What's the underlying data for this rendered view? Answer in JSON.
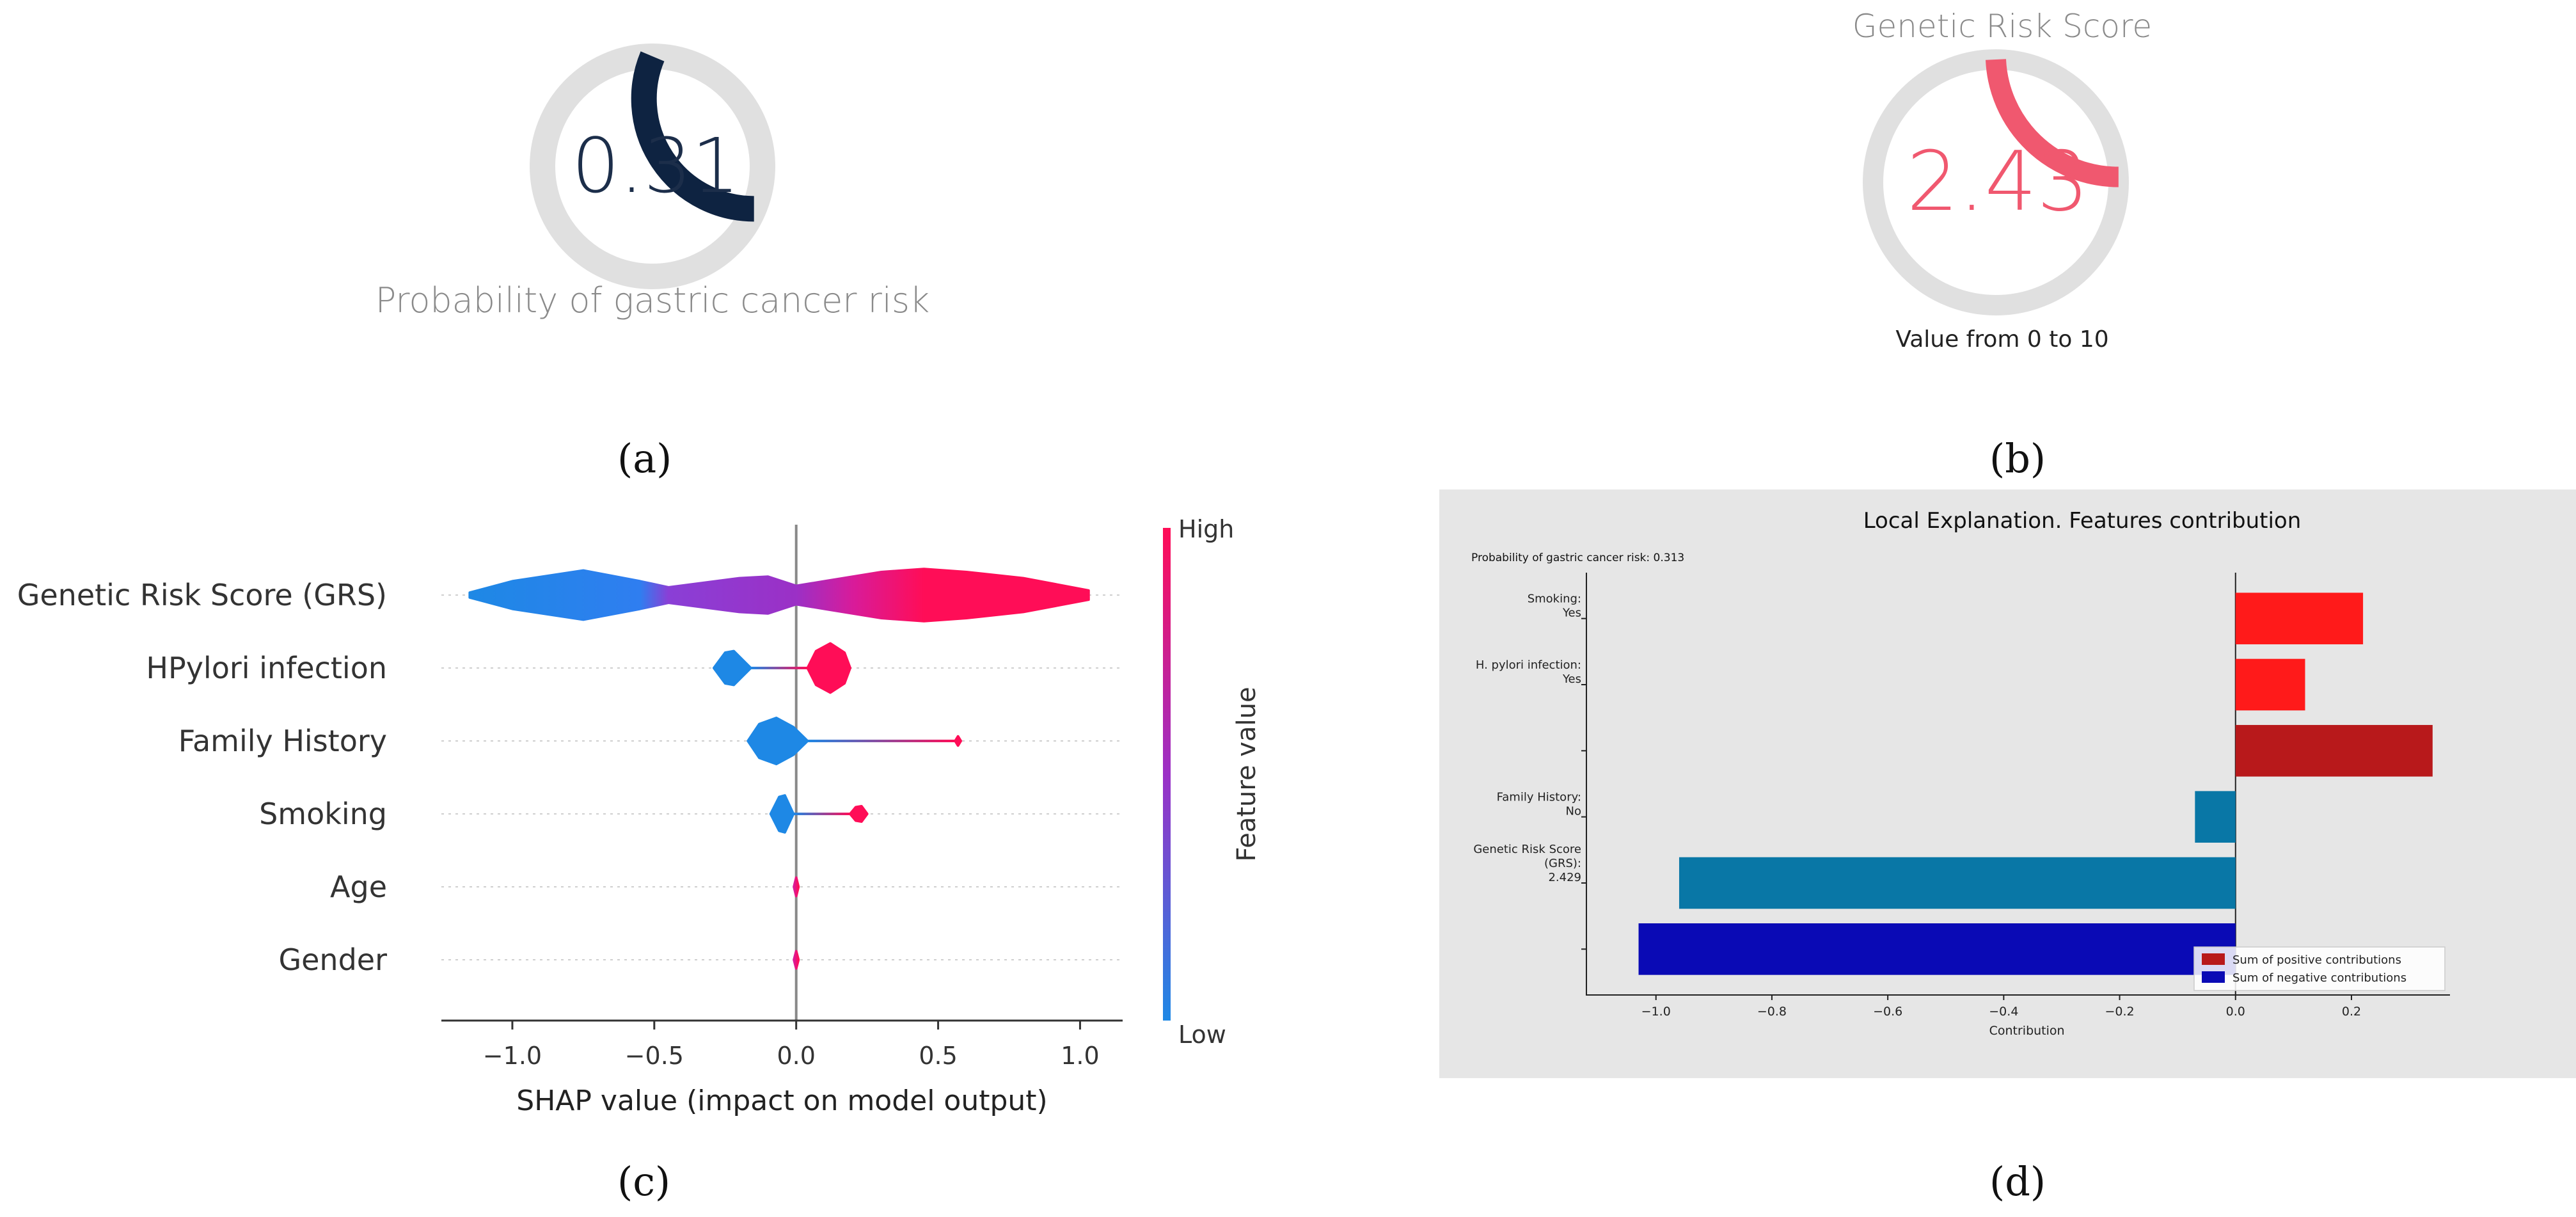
{
  "figure": {
    "panel_labels": [
      "(a)",
      "(b)",
      "(c)",
      "(d)"
    ]
  },
  "gauge_a": {
    "value_text": "0.31",
    "value": 0.313,
    "max": 1,
    "caption": "Probability of gastric cancer risk",
    "fill_color": "#0e2341",
    "track_color": "#e0e0e0"
  },
  "gauge_b": {
    "title": "Genetic Risk Score",
    "value_text": "2.43",
    "value": 2.43,
    "max": 10,
    "caption": "Value from 0 to 10",
    "fill_color": "#f0586f",
    "track_color": "#e0e0e0"
  },
  "chart_data": [
    {
      "id": "shap_summary",
      "type": "violin",
      "xlabel": "SHAP value (impact on model output)",
      "xlim": [
        -1.25,
        1.15
      ],
      "xticks": [
        -1.0,
        -0.5,
        0.0,
        0.5,
        1.0
      ],
      "xtick_labels": [
        "−1.0",
        "−0.5",
        "0.0",
        "0.5",
        "1.0"
      ],
      "features": [
        {
          "name": "Genetic Risk Score (GRS)",
          "shap_min": -1.15,
          "shap_max": 1.03,
          "density": [
            [
              -1.15,
              0.08
            ],
            [
              -1.0,
              0.45
            ],
            [
              -0.75,
              0.8
            ],
            [
              -0.55,
              0.45
            ],
            [
              -0.45,
              0.25
            ],
            [
              -0.2,
              0.55
            ],
            [
              -0.1,
              0.6
            ],
            [
              0.0,
              0.3
            ],
            [
              0.1,
              0.45
            ],
            [
              0.3,
              0.75
            ],
            [
              0.45,
              0.85
            ],
            [
              0.6,
              0.75
            ],
            [
              0.8,
              0.55
            ],
            [
              1.03,
              0.15
            ]
          ],
          "color_stops": [
            [
              -1.15,
              "#1e88e5"
            ],
            [
              -0.55,
              "#2f7ef0"
            ],
            [
              -0.45,
              "#8a3fd6"
            ],
            [
              0.0,
              "#9b30c6"
            ],
            [
              0.2,
              "#d81b9a"
            ],
            [
              0.45,
              "#ff0d57"
            ],
            [
              1.03,
              "#ff0d57"
            ]
          ]
        },
        {
          "name": "HPylori infection",
          "shap_min": -0.29,
          "shap_max": 0.19,
          "density": [
            [
              -0.29,
              0
            ],
            [
              -0.25,
              0.5
            ],
            [
              -0.22,
              0.55
            ],
            [
              -0.16,
              0
            ],
            [
              0.04,
              0
            ],
            [
              0.07,
              0.55
            ],
            [
              0.12,
              0.8
            ],
            [
              0.17,
              0.5
            ],
            [
              0.19,
              0
            ]
          ],
          "color_stops": [
            [
              -0.29,
              "#1e88e5"
            ],
            [
              -0.16,
              "#1e88e5"
            ],
            [
              0.04,
              "#ff0d57"
            ],
            [
              0.19,
              "#ff0d57"
            ]
          ]
        },
        {
          "name": "Family History",
          "shap_min": -0.17,
          "shap_max": 0.58,
          "density": [
            [
              -0.17,
              0
            ],
            [
              -0.13,
              0.55
            ],
            [
              -0.07,
              0.75
            ],
            [
              -0.01,
              0.45
            ],
            [
              0.04,
              0
            ],
            [
              0.56,
              0
            ],
            [
              0.57,
              0.15
            ],
            [
              0.58,
              0
            ]
          ],
          "color_stops": [
            [
              -0.17,
              "#1e88e5"
            ],
            [
              0.04,
              "#1e88e5"
            ],
            [
              0.56,
              "#ff0d57"
            ],
            [
              0.58,
              "#ff0d57"
            ]
          ]
        },
        {
          "name": "Smoking",
          "shap_min": -0.09,
          "shap_max": 0.25,
          "density": [
            [
              -0.09,
              0
            ],
            [
              -0.06,
              0.55
            ],
            [
              -0.04,
              0.6
            ],
            [
              -0.01,
              0
            ],
            [
              0.19,
              0
            ],
            [
              0.21,
              0.22
            ],
            [
              0.23,
              0.25
            ],
            [
              0.25,
              0
            ]
          ],
          "color_stops": [
            [
              -0.09,
              "#1e88e5"
            ],
            [
              -0.01,
              "#1e88e5"
            ],
            [
              0.19,
              "#ff0d57"
            ],
            [
              0.25,
              "#ff0d57"
            ]
          ]
        },
        {
          "name": "Age",
          "shap_min": -0.005,
          "shap_max": 0.005,
          "density": [
            [
              -0.008,
              0
            ],
            [
              0,
              0.3
            ],
            [
              0.008,
              0
            ]
          ],
          "color_stops": [
            [
              -0.008,
              "#d81b9a"
            ],
            [
              0.008,
              "#ff0d57"
            ]
          ]
        },
        {
          "name": "Gender",
          "shap_min": -0.005,
          "shap_max": 0.005,
          "density": [
            [
              -0.008,
              0
            ],
            [
              0,
              0.28
            ],
            [
              0.008,
              0
            ]
          ],
          "color_stops": [
            [
              -0.008,
              "#d81b9a"
            ],
            [
              0.008,
              "#ff0d57"
            ]
          ]
        }
      ],
      "colorbar": {
        "label": "Feature value",
        "high": "High",
        "low": "Low",
        "low_color": "#1e88e5",
        "high_color": "#ff0d57"
      }
    },
    {
      "id": "local_explanation",
      "type": "barh",
      "title": "Local Explanation. Features contribution",
      "annotation": "Probability of gastric cancer risk: 0.313",
      "xlabel": "Contribution",
      "xlim": [
        -1.12,
        0.37
      ],
      "xticks": [
        -1.0,
        -0.8,
        -0.6,
        -0.4,
        -0.2,
        0.0,
        0.2
      ],
      "xtick_labels": [
        "−1.0",
        "−0.8",
        "−0.6",
        "−0.4",
        "−0.2",
        "0.0",
        "0.2"
      ],
      "bars": [
        {
          "label": [
            "Smoking:",
            "Yes"
          ],
          "value": 0.22,
          "color": "#ff1a1a"
        },
        {
          "label": [
            "H. pylori infection:",
            "Yes"
          ],
          "value": 0.12,
          "color": "#ff1a1a"
        },
        {
          "label": [],
          "value": 0.34,
          "color": "#b8191b"
        },
        {
          "label": [
            "Family History:",
            "No"
          ],
          "value": -0.07,
          "color": "#0977a6"
        },
        {
          "label": [
            "Genetic Risk Score",
            "(GRS):",
            "2.429"
          ],
          "value": -0.96,
          "color": "#0977a6"
        },
        {
          "label": [],
          "value": -1.03,
          "color": "#0a0ab5"
        }
      ],
      "legend": [
        {
          "label": "Sum of positive contributions",
          "color": "#b8191b"
        },
        {
          "label": "Sum of negative contributions",
          "color": "#0a0ab5"
        }
      ],
      "legend_position": "lower-right",
      "background": "#e6e6e6"
    }
  ]
}
